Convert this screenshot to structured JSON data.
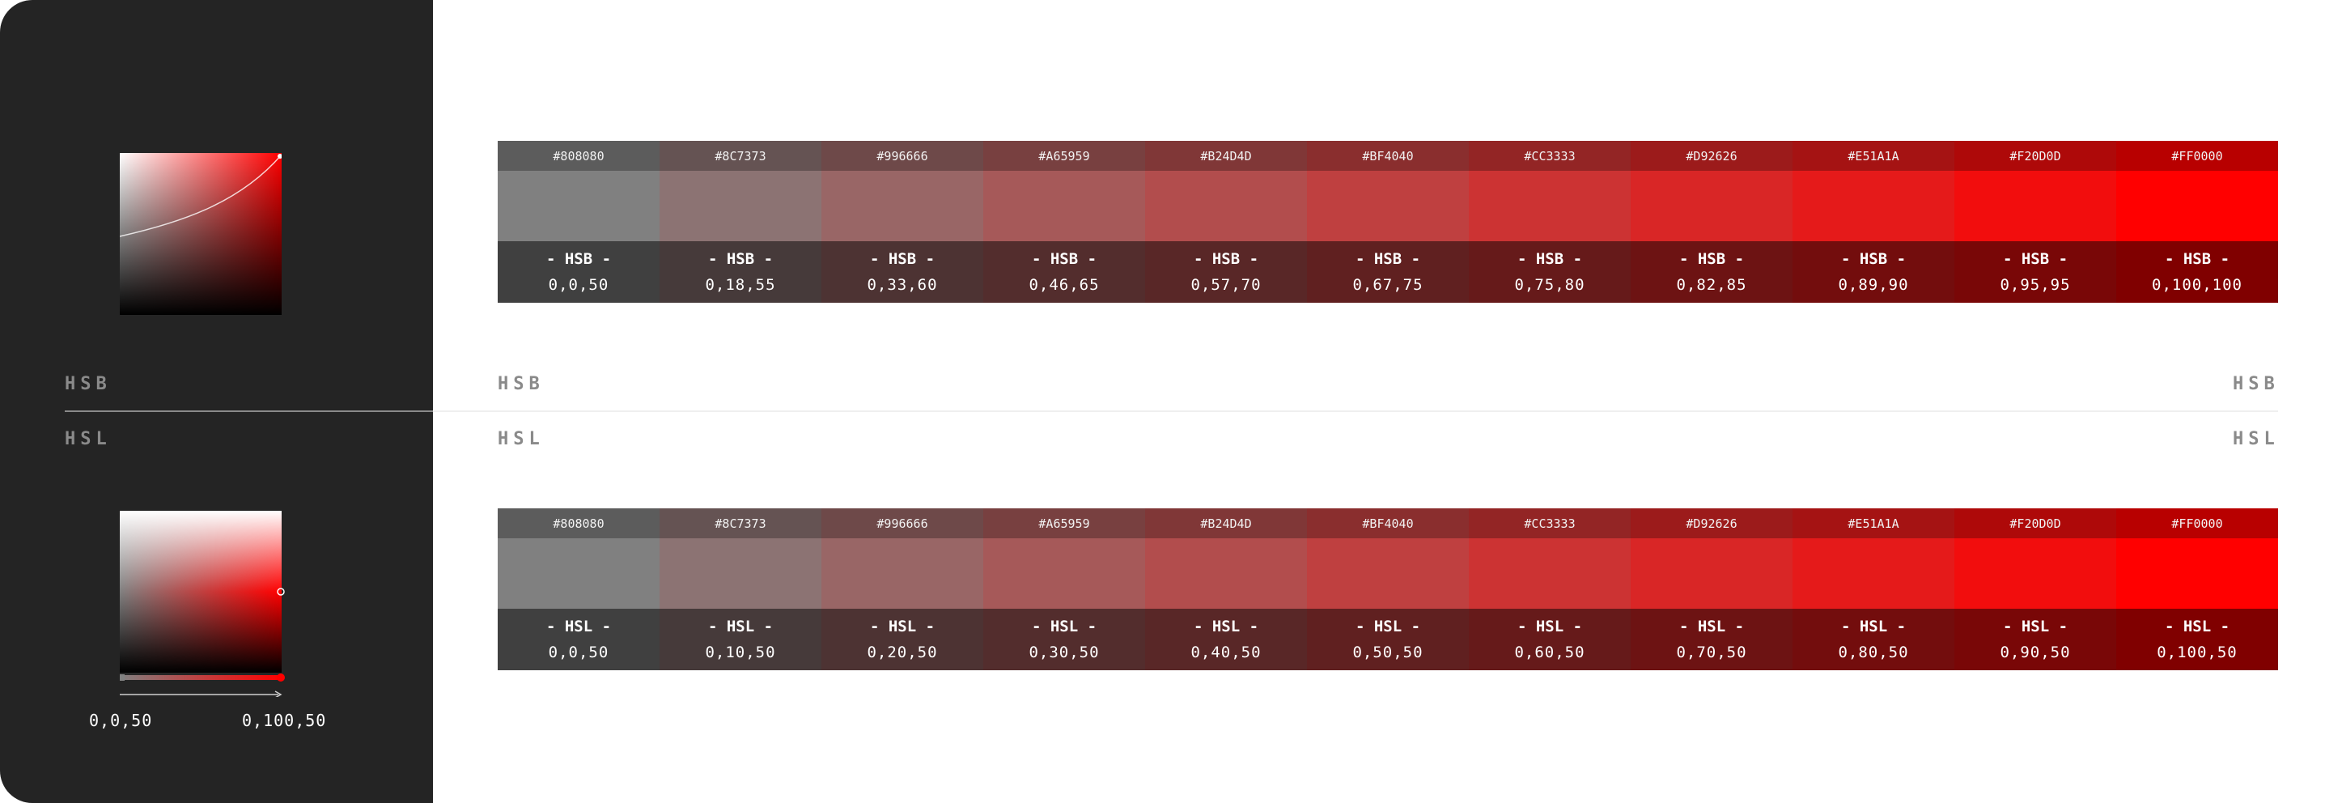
{
  "labels": {
    "hsb": "HSB",
    "hsl": "HSL"
  },
  "hsb_model": "- HSB -",
  "hsl_model": "- HSL -",
  "hsb_row": [
    {
      "hex": "#808080",
      "color": "#808080",
      "values": "0,0,50"
    },
    {
      "hex": "#8C7373",
      "color": "#8C7373",
      "values": "0,18,55"
    },
    {
      "hex": "#996666",
      "color": "#996666",
      "values": "0,33,60"
    },
    {
      "hex": "#A65959",
      "color": "#A65959",
      "values": "0,46,65"
    },
    {
      "hex": "#B24D4D",
      "color": "#B24D4D",
      "values": "0,57,70"
    },
    {
      "hex": "#BF4040",
      "color": "#BF4040",
      "values": "0,67,75"
    },
    {
      "hex": "#CC3333",
      "color": "#CC3333",
      "values": "0,75,80"
    },
    {
      "hex": "#D92626",
      "color": "#D92626",
      "values": "0,82,85"
    },
    {
      "hex": "#E51A1A",
      "color": "#E51A1A",
      "values": "0,89,90"
    },
    {
      "hex": "#F20D0D",
      "color": "#F20D0D",
      "values": "0,95,95"
    },
    {
      "hex": "#FF0000",
      "color": "#FF0000",
      "values": "0,100,100"
    }
  ],
  "hsl_row": [
    {
      "hex": "#808080",
      "color": "#808080",
      "values": "0,0,50"
    },
    {
      "hex": "#8C7373",
      "color": "#8C7373",
      "values": "0,10,50"
    },
    {
      "hex": "#996666",
      "color": "#996666",
      "values": "0,20,50"
    },
    {
      "hex": "#A65959",
      "color": "#A65959",
      "values": "0,30,50"
    },
    {
      "hex": "#B24D4D",
      "color": "#B24D4D",
      "values": "0,40,50"
    },
    {
      "hex": "#BF4040",
      "color": "#BF4040",
      "values": "0,50,50"
    },
    {
      "hex": "#CC3333",
      "color": "#CC3333",
      "values": "0,60,50"
    },
    {
      "hex": "#D92626",
      "color": "#D92626",
      "values": "0,70,50"
    },
    {
      "hex": "#E51A1A",
      "color": "#E51A1A",
      "values": "0,80,50"
    },
    {
      "hex": "#F20D0D",
      "color": "#F20D0D",
      "values": "0,90,50"
    },
    {
      "hex": "#FF0000",
      "color": "#FF0000",
      "values": "0,100,50"
    }
  ],
  "hsl_slider": {
    "start": "0,0,50",
    "end": "0,100,50"
  },
  "colors": {
    "sidebar": "#242424",
    "label": "#8a8a8a"
  }
}
